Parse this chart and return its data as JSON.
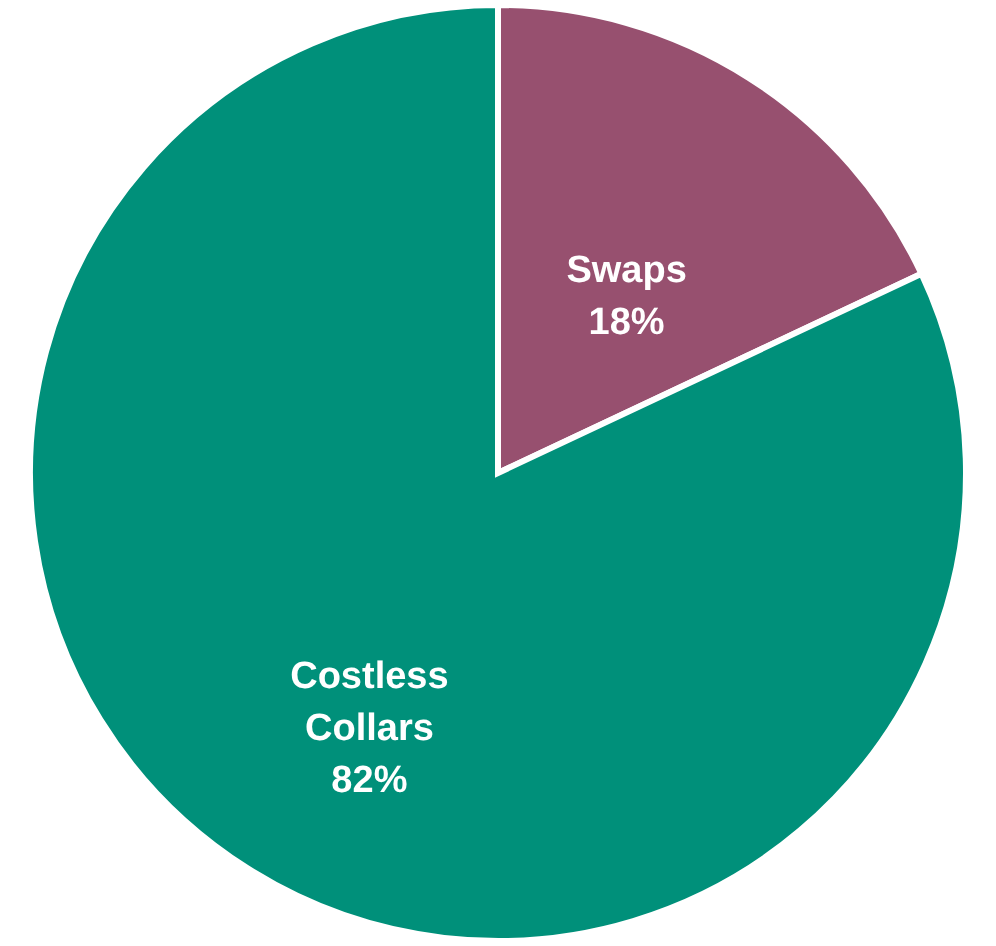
{
  "chart_data": {
    "type": "pie",
    "categories": [
      "Swaps",
      "Costless Collars"
    ],
    "values": [
      18,
      82
    ],
    "colors": [
      "#97506f",
      "#00907a"
    ],
    "value_labels": [
      "18%",
      "82%"
    ]
  }
}
